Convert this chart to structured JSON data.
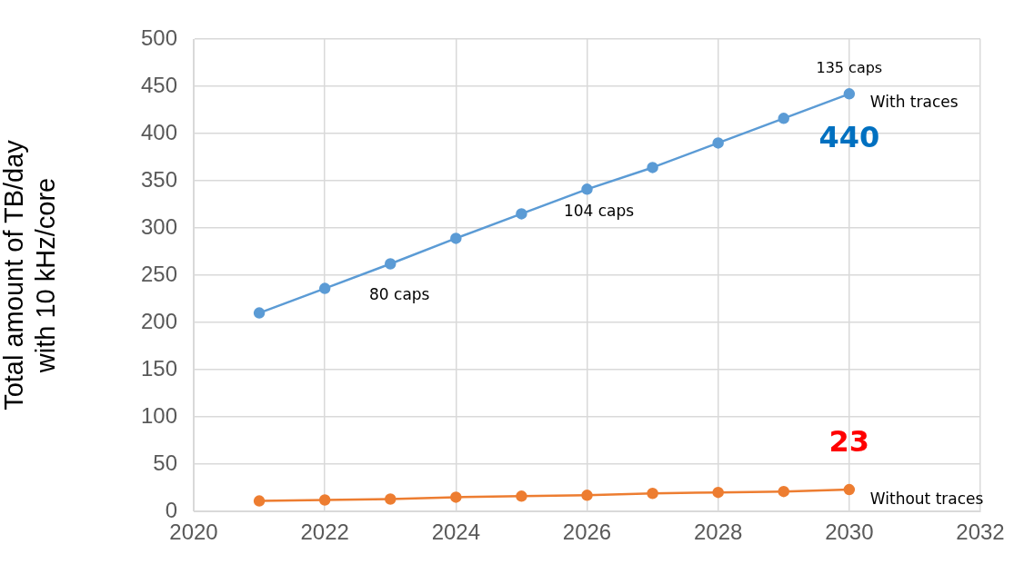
{
  "chart_data": {
    "type": "line",
    "ylabel": "Total amount of TB/day\nwith 10 kHz/core",
    "x": [
      2021,
      2022,
      2023,
      2024,
      2025,
      2026,
      2027,
      2028,
      2029,
      2030
    ],
    "series": [
      {
        "name": "With traces",
        "color": "#5b9bd5",
        "values": [
          210,
          236,
          262,
          289,
          315,
          341,
          364,
          390,
          416,
          442
        ]
      },
      {
        "name": "Without traces",
        "color": "#ed7d31",
        "values": [
          11,
          12,
          13,
          15,
          16,
          17,
          19,
          20,
          21,
          23
        ]
      }
    ],
    "xlim": [
      2020,
      2032
    ],
    "xticks": [
      2020,
      2022,
      2024,
      2026,
      2028,
      2030,
      2032
    ],
    "ylim": [
      0,
      500
    ],
    "yticks": [
      0,
      50,
      100,
      150,
      200,
      250,
      300,
      350,
      400,
      450,
      500
    ],
    "grid": true,
    "legend": false,
    "marker": "circle",
    "line_style": "solid",
    "annotations": [
      {
        "text": "135 caps",
        "x": 2030,
        "y": 442
      },
      {
        "text": "104 caps",
        "x": 2026,
        "y": 341
      },
      {
        "text": "80 caps",
        "x": 2023,
        "y": 262
      },
      {
        "text": "440",
        "x": 2030,
        "y": 442
      },
      {
        "text": "23",
        "x": 2030,
        "y": 23
      }
    ]
  }
}
